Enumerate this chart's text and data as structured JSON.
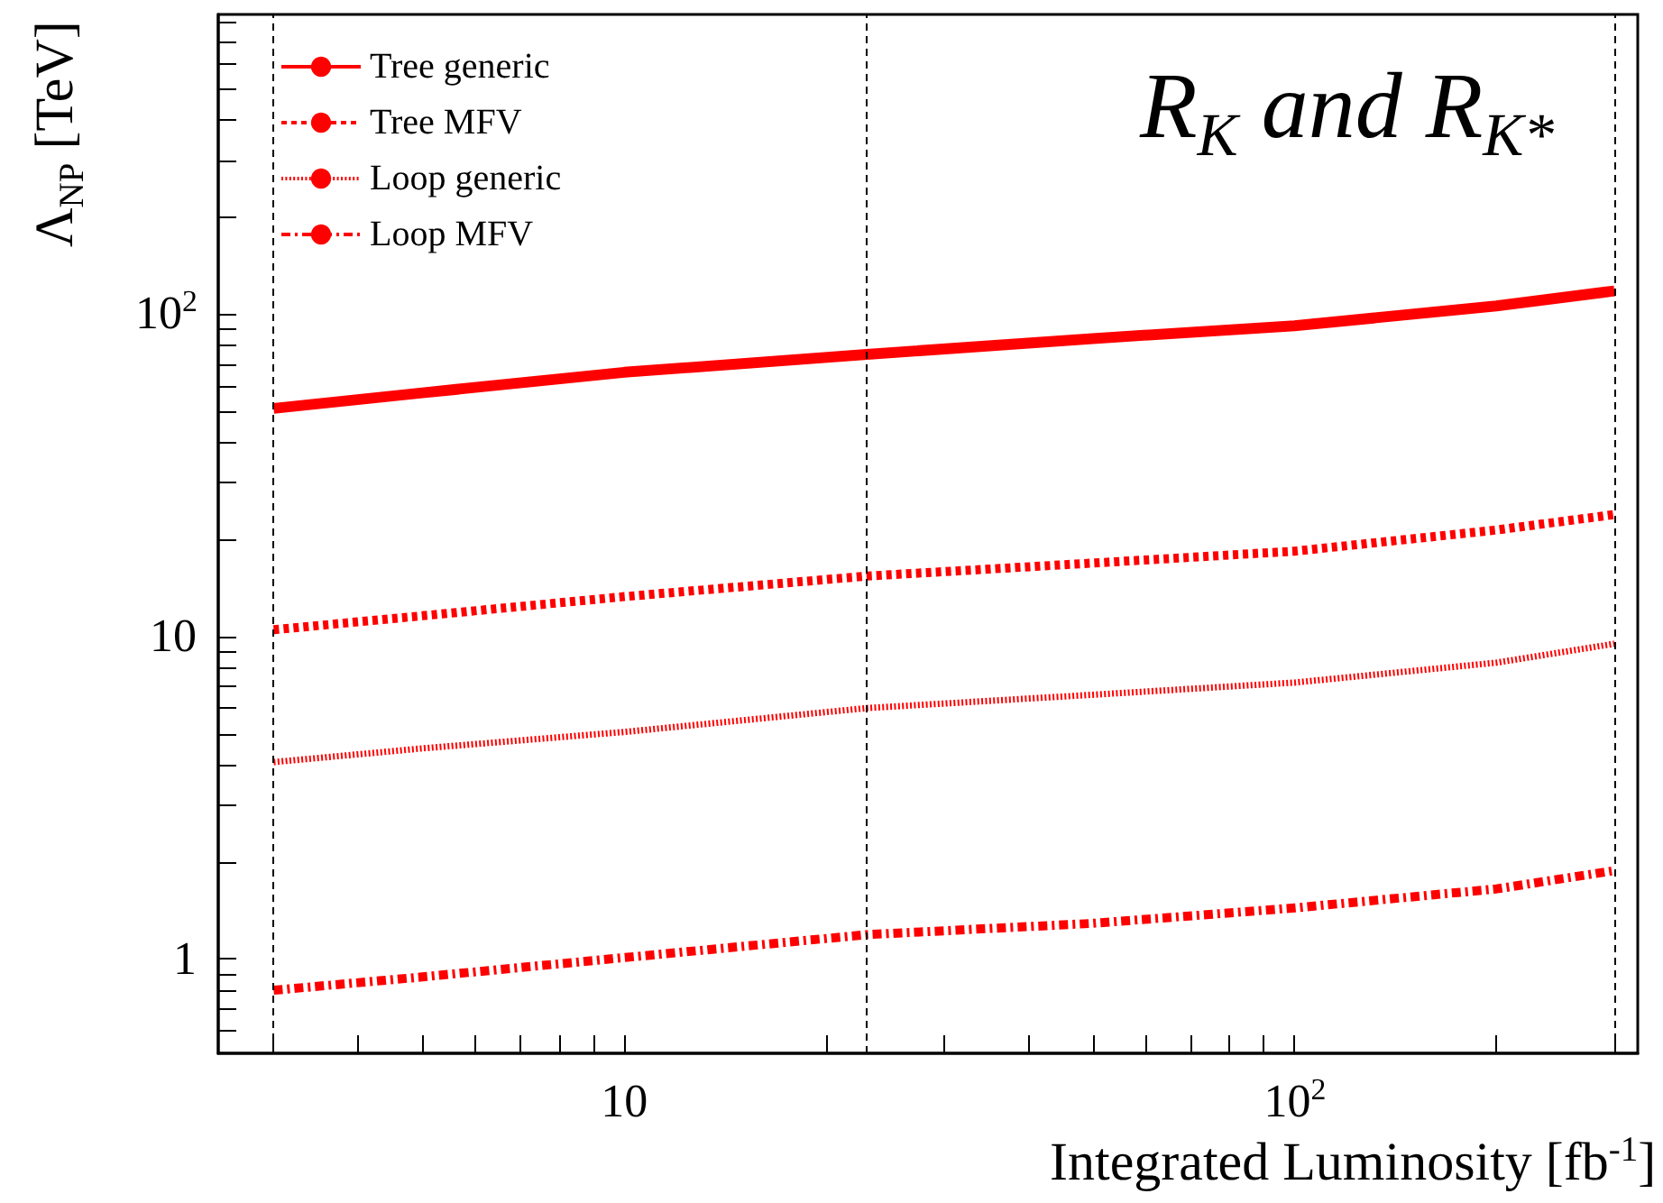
{
  "chart_data": {
    "type": "line",
    "title": "R$_{K}$ and R$_{K*}$",
    "xlabel": "Integrated Luminosity [fb$^{-1}$]",
    "ylabel": "Λ$_{NP}$ [TeV]",
    "x": [
      3,
      5,
      10,
      23,
      50,
      100,
      200,
      300
    ],
    "series": [
      {
        "name": "Tree generic",
        "color": "#ff0000",
        "line_style": "solid",
        "values": [
          51,
          57,
          66,
          75,
          84,
          92,
          106,
          118
        ]
      },
      {
        "name": "Tree MFV",
        "color": "#ff0000",
        "line_style": "dashed",
        "values": [
          10.5,
          11.6,
          13.3,
          15.4,
          16.9,
          18.4,
          21.4,
          23.9
        ]
      },
      {
        "name": "Loop generic",
        "color": "#ff0000",
        "line_style": "dotted",
        "values": [
          4.08,
          4.5,
          5.06,
          6.0,
          6.6,
          7.2,
          8.3,
          9.5
        ]
      },
      {
        "name": "Loop MFV",
        "color": "#ff0000",
        "line_style": "dashdot",
        "values": [
          0.8,
          0.88,
          1.01,
          1.19,
          1.29,
          1.44,
          1.65,
          1.88
        ]
      }
    ],
    "log": "xy",
    "xlim": [
      2.48,
      325
    ],
    "ylim": [
      0.51,
      850
    ],
    "xticks": [
      {
        "value": 3,
        "label": null
      },
      {
        "value": 4,
        "label": null
      },
      {
        "value": 5,
        "label": null
      },
      {
        "value": 6,
        "label": null
      },
      {
        "value": 7,
        "label": null
      },
      {
        "value": 8,
        "label": null
      },
      {
        "value": 9,
        "label": null
      },
      10,
      {
        "value": 20,
        "label": null
      },
      {
        "value": 30,
        "label": null
      },
      {
        "value": 40,
        "label": null
      },
      {
        "value": 50,
        "label": null
      },
      {
        "value": 60,
        "label": null
      },
      {
        "value": 70,
        "label": null
      },
      {
        "value": 80,
        "label": null
      },
      {
        "value": 90,
        "label": null
      },
      {
        "value": 100,
        "label": "10$^{2}$"
      },
      {
        "value": 200,
        "label": null
      },
      {
        "value": 300,
        "label": null
      }
    ],
    "yticks": [
      {
        "value": 0.6,
        "label": null
      },
      {
        "value": 0.7,
        "label": null
      },
      {
        "value": 0.8,
        "label": null
      },
      {
        "value": 0.9,
        "label": null
      },
      1,
      {
        "value": 2,
        "label": null
      },
      {
        "value": 3,
        "label": null
      },
      {
        "value": 4,
        "label": null
      },
      {
        "value": 5,
        "label": null
      },
      {
        "value": 6,
        "label": null
      },
      {
        "value": 7,
        "label": null
      },
      {
        "value": 8,
        "label": null
      },
      {
        "value": 9,
        "label": null
      },
      10,
      {
        "value": 20,
        "label": null
      },
      {
        "value": 30,
        "label": null
      },
      {
        "value": 40,
        "label": null
      },
      {
        "value": 50,
        "label": null
      },
      {
        "value": 60,
        "label": null
      },
      {
        "value": 70,
        "label": null
      },
      {
        "value": 80,
        "label": null
      },
      {
        "value": 90,
        "label": null
      },
      {
        "value": 100,
        "label": "10$^{2}$"
      },
      {
        "value": 200,
        "label": null
      },
      {
        "value": 300,
        "label": null
      },
      {
        "value": 400,
        "label": null
      },
      {
        "value": 500,
        "label": null
      },
      {
        "value": 600,
        "label": null
      },
      {
        "value": 700,
        "label": null
      },
      {
        "value": 800,
        "label": null
      }
    ],
    "ref_lines": [
      {
        "axis": "x",
        "value": 3,
        "color": "#000000",
        "line_style": "dashed"
      },
      {
        "axis": "x",
        "value": 23,
        "color": "#000000",
        "line_style": "dashed"
      },
      {
        "axis": "x",
        "value": 300,
        "color": "#000000",
        "line_style": "dashed"
      }
    ],
    "grid": false,
    "legend": "top left",
    "marker": "none"
  }
}
